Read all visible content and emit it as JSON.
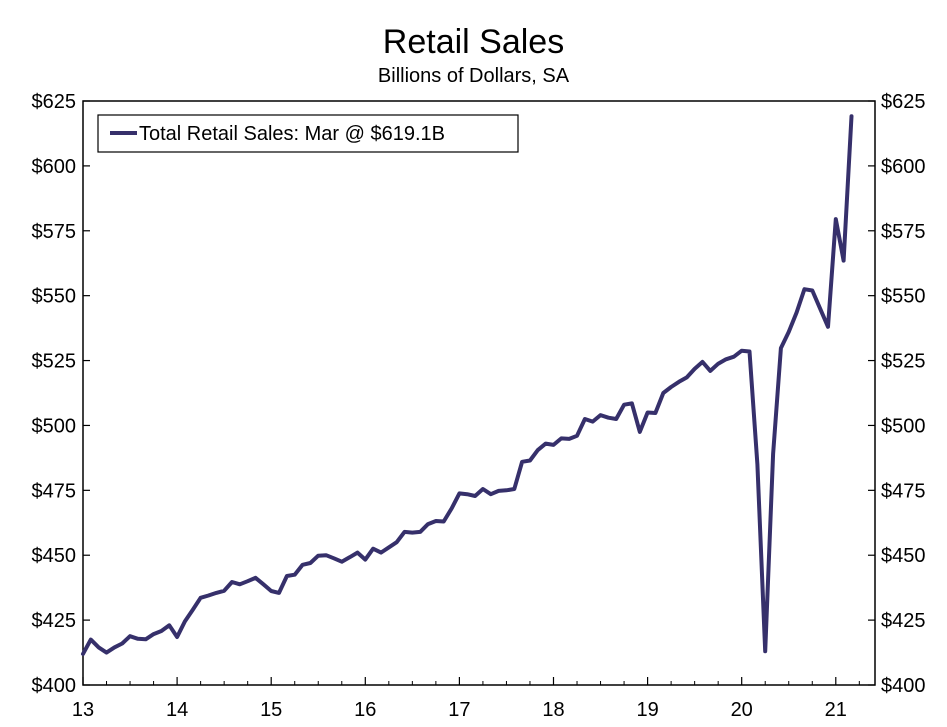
{
  "chart_data": {
    "type": "line",
    "title": "Retail Sales",
    "subtitle": "Billions of Dollars, SA",
    "xlabel": "",
    "ylabel": "",
    "ylim": [
      400,
      625
    ],
    "y_ticks": [
      400,
      425,
      450,
      475,
      500,
      525,
      550,
      575,
      600,
      625
    ],
    "y_tick_labels": [
      "$400",
      "$425",
      "$450",
      "$475",
      "$500",
      "$525",
      "$550",
      "$575",
      "$600",
      "$625"
    ],
    "x_tick_labels": [
      "13",
      "14",
      "15",
      "16",
      "17",
      "18",
      "19",
      "20",
      "21"
    ],
    "x_tick_years": [
      2013,
      2014,
      2015,
      2016,
      2017,
      2018,
      2019,
      2020,
      2021
    ],
    "xlim": [
      "2013-01",
      "2021-06"
    ],
    "grid": false,
    "legend_position": "top-left",
    "color": "#36306b",
    "series": [
      {
        "name": "Total Retail Sales: Mar @ $619.1B",
        "x": [
          "2013-01",
          "2013-02",
          "2013-03",
          "2013-04",
          "2013-05",
          "2013-06",
          "2013-07",
          "2013-08",
          "2013-09",
          "2013-10",
          "2013-11",
          "2013-12",
          "2014-01",
          "2014-02",
          "2014-03",
          "2014-04",
          "2014-05",
          "2014-06",
          "2014-07",
          "2014-08",
          "2014-09",
          "2014-10",
          "2014-11",
          "2014-12",
          "2015-01",
          "2015-02",
          "2015-03",
          "2015-04",
          "2015-05",
          "2015-06",
          "2015-07",
          "2015-08",
          "2015-09",
          "2015-10",
          "2015-11",
          "2015-12",
          "2016-01",
          "2016-02",
          "2016-03",
          "2016-04",
          "2016-05",
          "2016-06",
          "2016-07",
          "2016-08",
          "2016-09",
          "2016-10",
          "2016-11",
          "2016-12",
          "2017-01",
          "2017-02",
          "2017-03",
          "2017-04",
          "2017-05",
          "2017-06",
          "2017-07",
          "2017-08",
          "2017-09",
          "2017-10",
          "2017-11",
          "2017-12",
          "2018-01",
          "2018-02",
          "2018-03",
          "2018-04",
          "2018-05",
          "2018-06",
          "2018-07",
          "2018-08",
          "2018-09",
          "2018-10",
          "2018-11",
          "2018-12",
          "2019-01",
          "2019-02",
          "2019-03",
          "2019-04",
          "2019-05",
          "2019-06",
          "2019-07",
          "2019-08",
          "2019-09",
          "2019-10",
          "2019-11",
          "2019-12",
          "2020-01",
          "2020-02",
          "2020-03",
          "2020-04",
          "2020-05",
          "2020-06",
          "2020-07",
          "2020-08",
          "2020-09",
          "2020-10",
          "2020-11",
          "2020-12",
          "2021-01",
          "2021-02",
          "2021-03"
        ],
        "values": [
          412.0,
          417.5,
          414.5,
          412.5,
          414.5,
          416.0,
          418.8,
          417.8,
          417.6,
          419.6,
          420.8,
          423.0,
          418.5,
          424.5,
          429.0,
          433.6,
          434.5,
          435.5,
          436.3,
          439.7,
          438.8,
          440.0,
          441.3,
          438.8,
          436.2,
          435.5,
          442.0,
          442.5,
          446.3,
          447.0,
          449.8,
          450.0,
          448.8,
          447.5,
          449.2,
          451.0,
          448.3,
          452.5,
          451.0,
          453.0,
          455.0,
          459.0,
          458.7,
          459.0,
          462.0,
          463.2,
          463.0,
          468.0,
          473.8,
          473.5,
          472.8,
          475.5,
          473.5,
          474.8,
          475.0,
          475.5,
          486.0,
          486.5,
          490.5,
          493.0,
          492.5,
          495.0,
          494.8,
          496.0,
          502.5,
          501.5,
          504.0,
          503.0,
          502.5,
          508.0,
          508.5,
          497.5,
          505.0,
          504.8,
          512.5,
          514.8,
          516.8,
          518.5,
          521.8,
          524.5,
          521.0,
          523.8,
          525.5,
          526.5,
          528.8,
          528.5,
          485.0,
          413.0,
          489.0,
          529.8,
          536.0,
          543.5,
          552.5,
          552.0,
          545.0,
          538.0,
          579.5,
          563.5,
          619.1
        ]
      }
    ]
  }
}
